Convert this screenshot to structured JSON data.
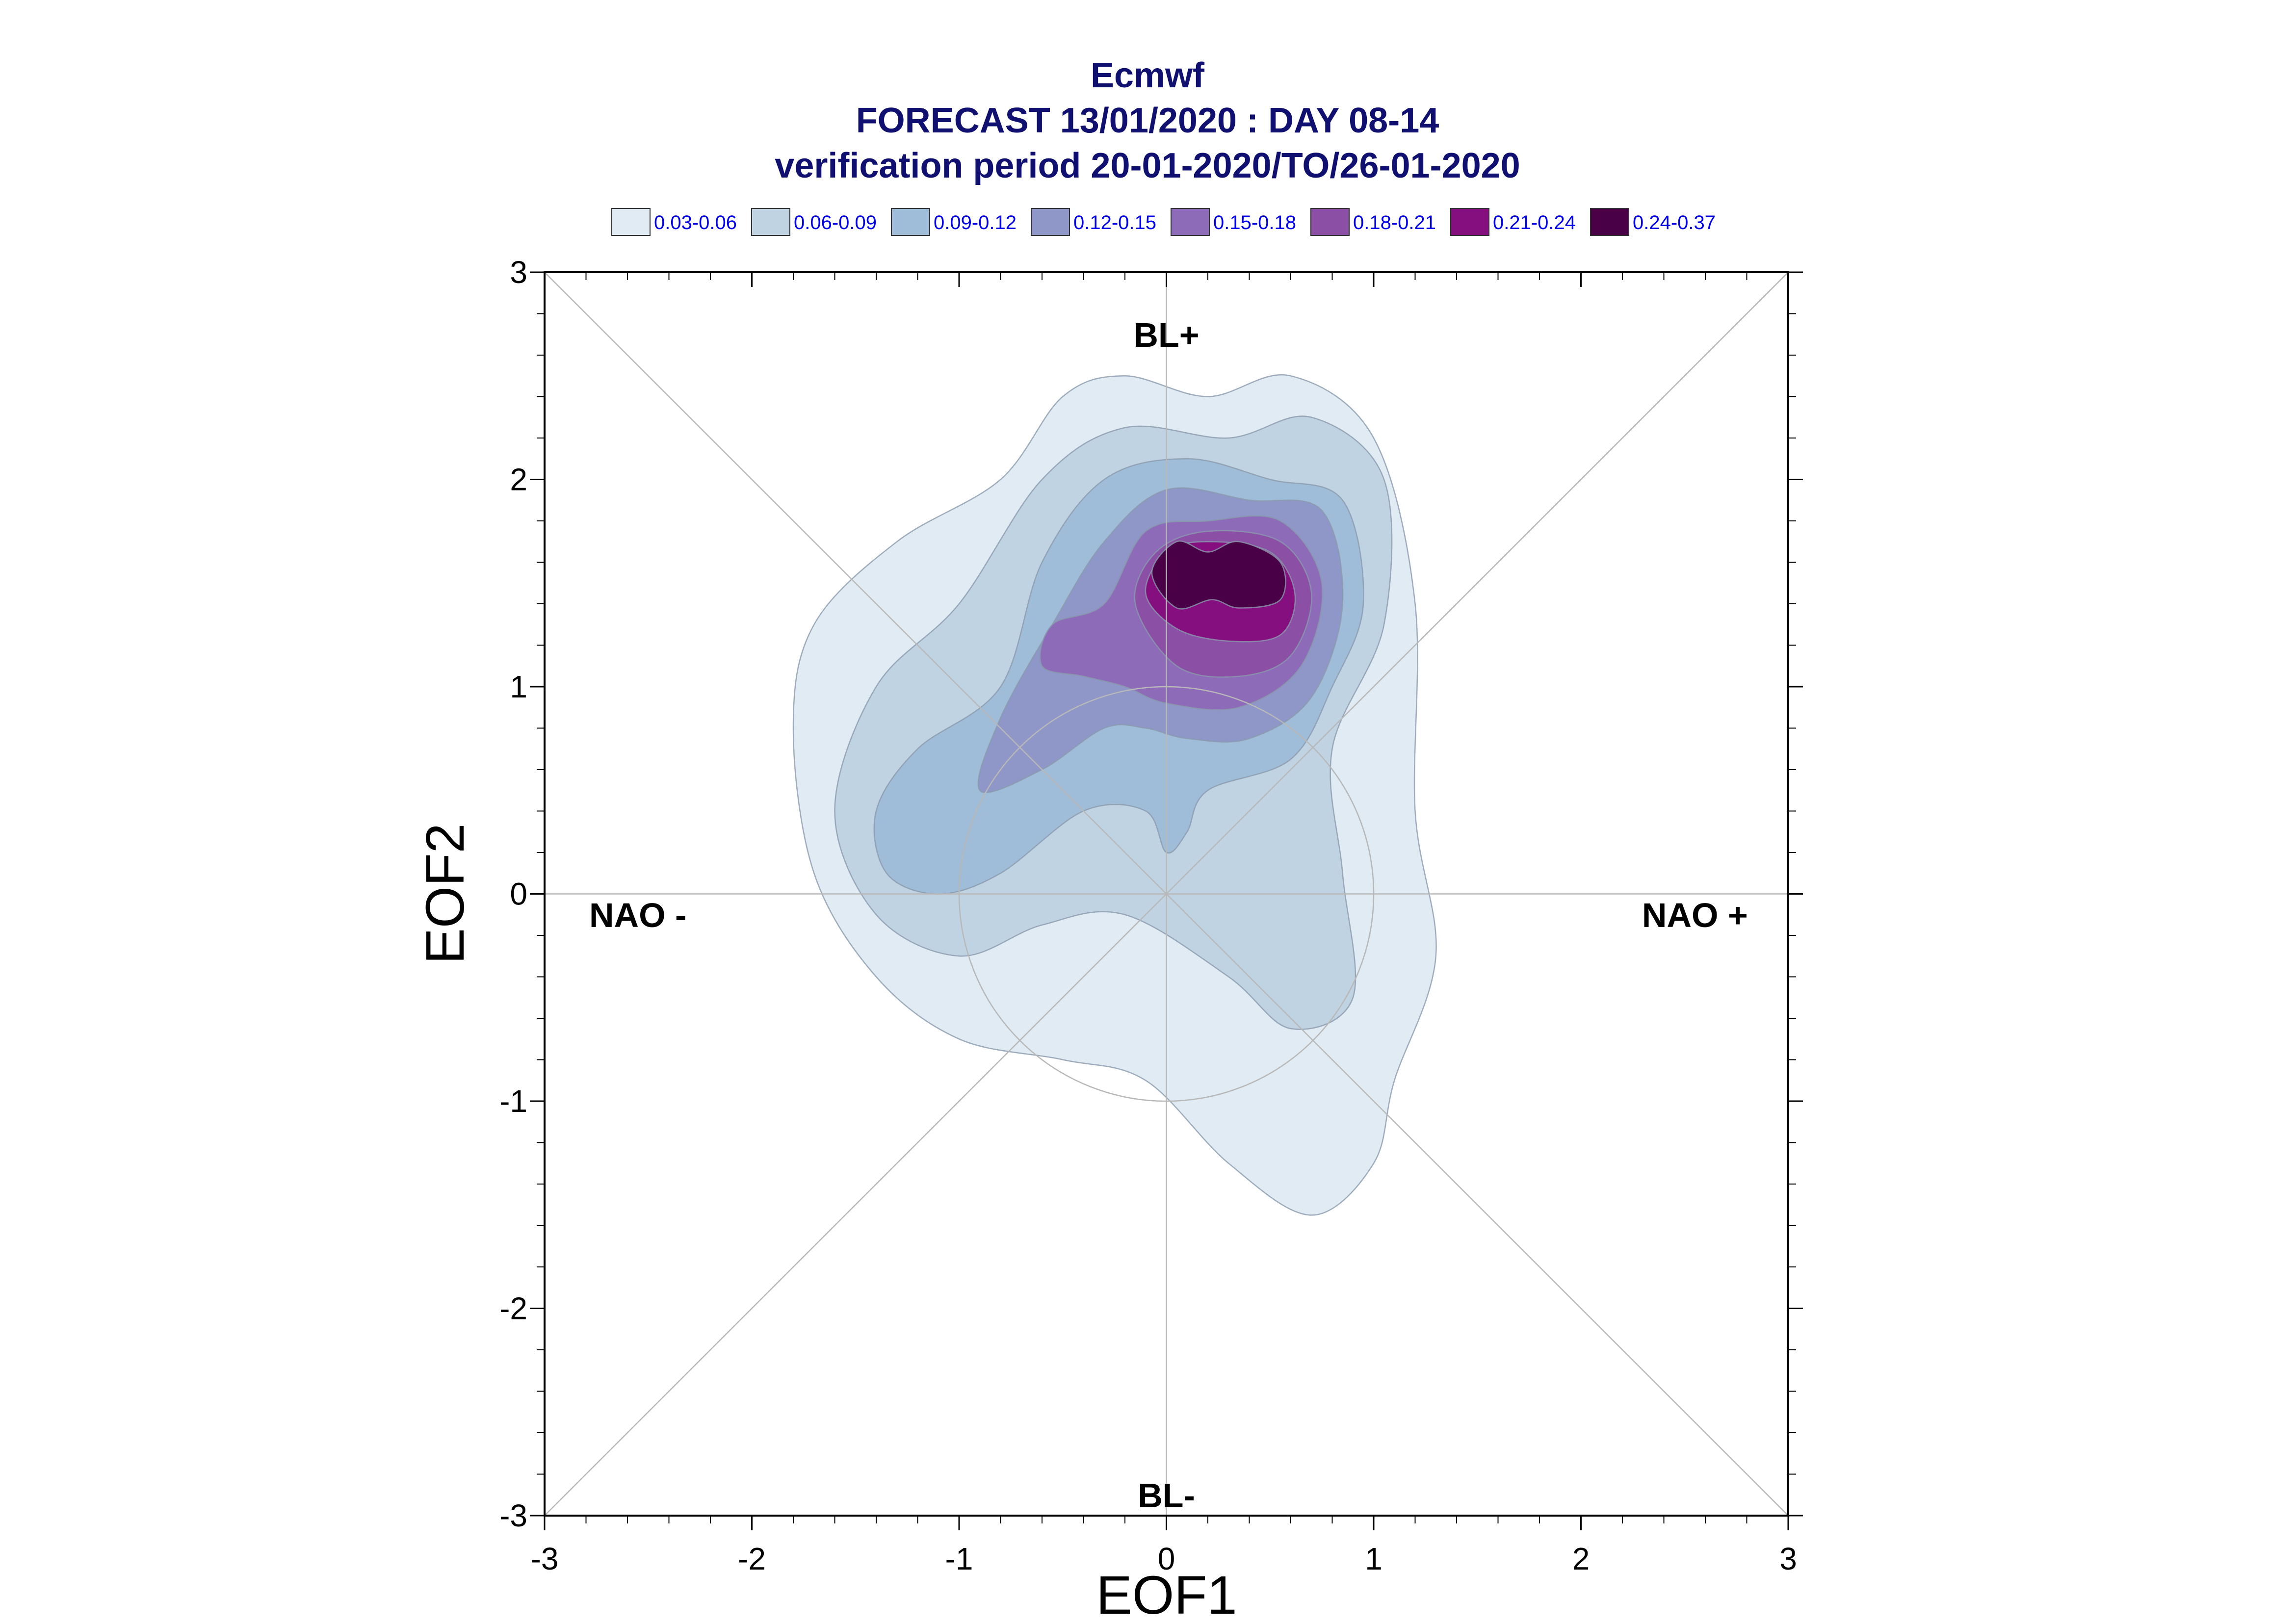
{
  "chart_data": {
    "type": "contour",
    "title_lines": [
      "Ecmwf",
      "FORECAST 13/01/2020 : DAY 08-14",
      "verification period 20-01-2020/TO/26-01-2020"
    ],
    "xlabel": "EOF1",
    "ylabel": "EOF2",
    "xlim": [
      -3,
      3
    ],
    "ylim": [
      -3,
      3
    ],
    "xticks": [
      "-3",
      "-2",
      "-1",
      "0",
      "1",
      "2",
      "3"
    ],
    "yticks": [
      "-3",
      "-2",
      "-1",
      "0",
      "1",
      "2",
      "3"
    ],
    "grid": "diagonals, axes and unit circle",
    "region_labels": [
      {
        "text": "BL+",
        "x": 0,
        "y": 2.7
      },
      {
        "text": "NAO -",
        "x": -2.55,
        "y": -0.1
      },
      {
        "text": "NAO +",
        "x": 2.55,
        "y": -0.1
      },
      {
        "text": "BL-",
        "x": 0,
        "y": -2.9
      }
    ],
    "legend": [
      {
        "label": "0.03-0.06",
        "color": "#e1ebf3"
      },
      {
        "label": "0.06-0.09",
        "color": "#c0d3e2"
      },
      {
        "label": "0.09-0.12",
        "color": "#9fbdd8"
      },
      {
        "label": "0.12-0.15",
        "color": "#8e97c8"
      },
      {
        "label": "0.15-0.18",
        "color": "#8d6bb8"
      },
      {
        "label": "0.18-0.21",
        "color": "#8b4fa6"
      },
      {
        "label": "0.21-0.24",
        "color": "#860f80"
      },
      {
        "label": "0.24-0.37",
        "color": "#4a0047"
      }
    ],
    "contours": [
      {
        "level": "0.03-0.06",
        "points": [
          [
            -1.8,
            0.8
          ],
          [
            -1.7,
            1.3
          ],
          [
            -1.3,
            1.7
          ],
          [
            -0.8,
            2.0
          ],
          [
            -0.5,
            2.4
          ],
          [
            -0.2,
            2.5
          ],
          [
            0.2,
            2.4
          ],
          [
            0.6,
            2.5
          ],
          [
            1.0,
            2.2
          ],
          [
            1.2,
            1.4
          ],
          [
            1.2,
            0.4
          ],
          [
            1.3,
            -0.3
          ],
          [
            1.1,
            -0.9
          ],
          [
            1.0,
            -1.3
          ],
          [
            0.7,
            -1.55
          ],
          [
            0.3,
            -1.3
          ],
          [
            -0.1,
            -0.9
          ],
          [
            -0.5,
            -0.8
          ],
          [
            -1.0,
            -0.7
          ],
          [
            -1.4,
            -0.4
          ],
          [
            -1.7,
            0.1
          ]
        ]
      },
      {
        "level": "0.06-0.09",
        "points": [
          [
            -1.6,
            0.4
          ],
          [
            -1.4,
            1.0
          ],
          [
            -1.0,
            1.4
          ],
          [
            -0.6,
            2.0
          ],
          [
            -0.2,
            2.25
          ],
          [
            0.3,
            2.2
          ],
          [
            0.7,
            2.3
          ],
          [
            1.05,
            2.0
          ],
          [
            1.05,
            1.3
          ],
          [
            0.8,
            0.7
          ],
          [
            0.85,
            0.1
          ],
          [
            0.9,
            -0.5
          ],
          [
            0.6,
            -0.65
          ],
          [
            0.3,
            -0.4
          ],
          [
            -0.2,
            -0.1
          ],
          [
            -0.6,
            -0.15
          ],
          [
            -1.0,
            -0.3
          ],
          [
            -1.4,
            -0.1
          ]
        ]
      },
      {
        "level": "0.09-0.12",
        "points": [
          [
            -1.4,
            0.4
          ],
          [
            -1.2,
            0.7
          ],
          [
            -0.8,
            1.0
          ],
          [
            -0.6,
            1.6
          ],
          [
            -0.3,
            2.0
          ],
          [
            0.1,
            2.1
          ],
          [
            0.5,
            2.0
          ],
          [
            0.85,
            1.9
          ],
          [
            0.95,
            1.4
          ],
          [
            0.8,
            1.0
          ],
          [
            0.6,
            0.65
          ],
          [
            0.2,
            0.5
          ],
          [
            0.1,
            0.3
          ],
          [
            0.0,
            0.2
          ],
          [
            -0.1,
            0.4
          ],
          [
            -0.4,
            0.4
          ],
          [
            -0.8,
            0.1
          ],
          [
            -1.1,
            0.0
          ],
          [
            -1.35,
            0.1
          ]
        ]
      },
      {
        "level": "0.12-0.15",
        "points": [
          [
            -0.9,
            0.5
          ],
          [
            -0.8,
            0.85
          ],
          [
            -0.55,
            1.3
          ],
          [
            -0.3,
            1.7
          ],
          [
            0.0,
            1.95
          ],
          [
            0.4,
            1.9
          ],
          [
            0.75,
            1.85
          ],
          [
            0.85,
            1.4
          ],
          [
            0.7,
            0.95
          ],
          [
            0.4,
            0.75
          ],
          [
            0.1,
            0.75
          ],
          [
            -0.1,
            0.8
          ],
          [
            -0.3,
            0.8
          ],
          [
            -0.6,
            0.6
          ]
        ]
      },
      {
        "level": "0.15-0.18",
        "points": [
          [
            -0.6,
            1.1
          ],
          [
            -0.55,
            1.3
          ],
          [
            -0.3,
            1.4
          ],
          [
            -0.1,
            1.75
          ],
          [
            0.2,
            1.8
          ],
          [
            0.55,
            1.8
          ],
          [
            0.75,
            1.5
          ],
          [
            0.65,
            1.1
          ],
          [
            0.35,
            0.9
          ],
          [
            0.0,
            0.92
          ],
          [
            -0.2,
            1.0
          ],
          [
            -0.4,
            1.05
          ]
        ]
      },
      {
        "level": "0.18-0.21",
        "points": [
          [
            -0.15,
            1.4
          ],
          [
            -0.05,
            1.65
          ],
          [
            0.2,
            1.75
          ],
          [
            0.55,
            1.7
          ],
          [
            0.7,
            1.45
          ],
          [
            0.6,
            1.15
          ],
          [
            0.35,
            1.05
          ],
          [
            0.05,
            1.1
          ]
        ]
      },
      {
        "level": "0.21-0.24",
        "points": [
          [
            -0.1,
            1.45
          ],
          [
            0.0,
            1.65
          ],
          [
            0.2,
            1.7
          ],
          [
            0.5,
            1.65
          ],
          [
            0.62,
            1.45
          ],
          [
            0.55,
            1.25
          ],
          [
            0.3,
            1.22
          ],
          [
            0.05,
            1.28
          ]
        ]
      },
      {
        "level": "0.24-0.37",
        "points": [
          [
            -0.07,
            1.55
          ],
          [
            0.05,
            1.7
          ],
          [
            0.2,
            1.65
          ],
          [
            0.35,
            1.7
          ],
          [
            0.55,
            1.6
          ],
          [
            0.55,
            1.42
          ],
          [
            0.35,
            1.38
          ],
          [
            0.22,
            1.42
          ],
          [
            0.05,
            1.38
          ]
        ]
      }
    ]
  }
}
